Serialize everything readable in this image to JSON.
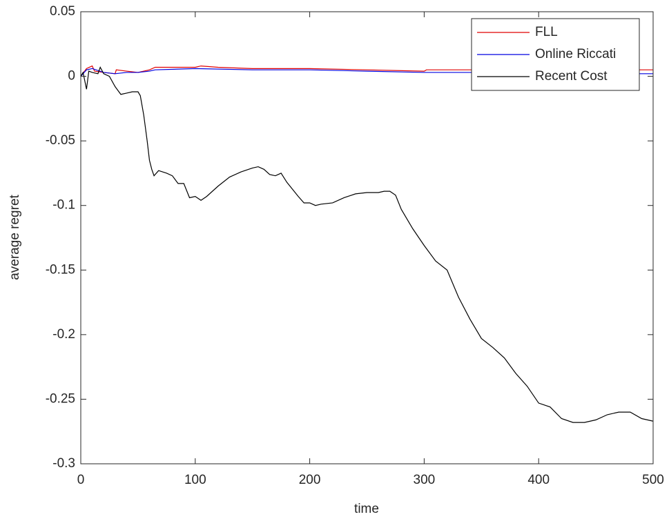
{
  "chart_data": {
    "type": "line",
    "xlabel": "time",
    "ylabel": "average regret",
    "xlim": [
      0,
      500
    ],
    "xticks": [
      0,
      100,
      200,
      300,
      400,
      500
    ],
    "ylim": [
      -0.3,
      0.05
    ],
    "yticks": [
      -0.3,
      -0.25,
      -0.2,
      -0.15,
      -0.1,
      -0.05,
      0,
      0.05
    ],
    "grid": false,
    "legend": "northeast",
    "series": [
      {
        "name": "FLL",
        "color": "#e00000",
        "x": [
          0,
          5,
          10,
          12,
          20,
          30,
          31,
          40,
          50,
          55,
          60,
          65,
          80,
          100,
          105,
          120,
          150,
          200,
          250,
          300,
          302,
          350,
          400,
          450,
          500
        ],
        "values": [
          0,
          0.006,
          0.008,
          0.004,
          0.003,
          0.002,
          0.005,
          0.004,
          0.003,
          0.004,
          0.005,
          0.007,
          0.007,
          0.007,
          0.008,
          0.007,
          0.006,
          0.006,
          0.005,
          0.004,
          0.005,
          0.005,
          0.005,
          0.005,
          0.005
        ]
      },
      {
        "name": "Online Riccati",
        "color": "#0000e0",
        "x": [
          0,
          5,
          10,
          20,
          30,
          40,
          50,
          60,
          65,
          100,
          150,
          200,
          250,
          300,
          350,
          400,
          450,
          500
        ],
        "values": [
          0,
          0.005,
          0.006,
          0.003,
          0.002,
          0.003,
          0.003,
          0.004,
          0.005,
          0.006,
          0.005,
          0.005,
          0.004,
          0.003,
          0.003,
          0.003,
          0.002,
          0.002
        ]
      },
      {
        "name": "Recent Cost",
        "color": "#000000",
        "x": [
          0,
          2,
          5,
          7,
          10,
          15,
          17,
          20,
          25,
          30,
          35,
          40,
          45,
          50,
          52,
          55,
          58,
          60,
          62,
          64,
          68,
          75,
          80,
          85,
          90,
          95,
          100,
          105,
          110,
          120,
          130,
          140,
          150,
          155,
          160,
          165,
          170,
          175,
          180,
          190,
          195,
          200,
          205,
          210,
          220,
          230,
          240,
          250,
          260,
          265,
          270,
          275,
          280,
          290,
          300,
          310,
          320,
          330,
          340,
          350,
          360,
          370,
          380,
          390,
          400,
          410,
          420,
          430,
          440,
          450,
          460,
          470,
          480,
          490,
          500
        ],
        "values": [
          0,
          0.003,
          -0.01,
          0.004,
          0.003,
          0.002,
          0.007,
          0.002,
          0,
          -0.008,
          -0.014,
          -0.013,
          -0.012,
          -0.012,
          -0.015,
          -0.03,
          -0.05,
          -0.065,
          -0.072,
          -0.077,
          -0.073,
          -0.075,
          -0.077,
          -0.083,
          -0.083,
          -0.094,
          -0.093,
          -0.096,
          -0.093,
          -0.085,
          -0.078,
          -0.074,
          -0.071,
          -0.07,
          -0.072,
          -0.076,
          -0.077,
          -0.075,
          -0.082,
          -0.093,
          -0.098,
          -0.098,
          -0.1,
          -0.099,
          -0.098,
          -0.094,
          -0.091,
          -0.09,
          -0.09,
          -0.089,
          -0.089,
          -0.092,
          -0.103,
          -0.118,
          -0.131,
          -0.143,
          -0.15,
          -0.171,
          -0.188,
          -0.203,
          -0.21,
          -0.218,
          -0.23,
          -0.24,
          -0.253,
          -0.256,
          -0.265,
          -0.268,
          -0.268,
          -0.266,
          -0.262,
          -0.26,
          -0.26,
          -0.265,
          -0.267
        ]
      }
    ]
  }
}
